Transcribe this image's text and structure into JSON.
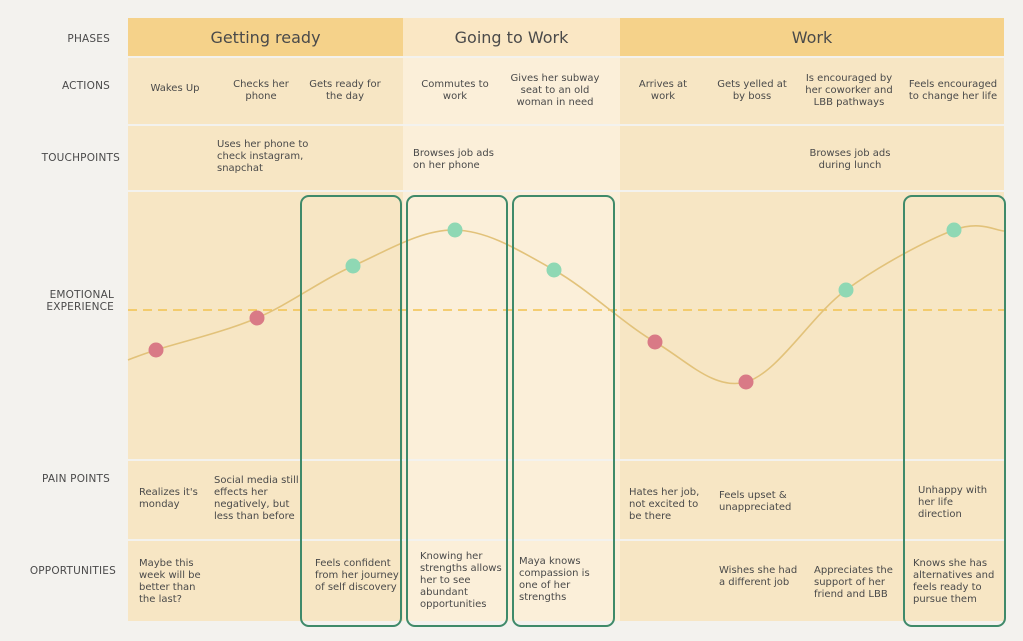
{
  "row_labels": {
    "phases": "PHASES",
    "actions": "ACTIONS",
    "touchpoints": "TOUCHPOINTS",
    "emotional_1": "EMOTIONAL",
    "emotional_2": "EXPERIENCE",
    "pain_points": "PAIN POINTS",
    "opportunities": "OPPORTUNITIES"
  },
  "phases": [
    "Getting ready",
    "Going to Work",
    "Work"
  ],
  "actions": [
    "Wakes Up",
    "Checks her phone",
    "Gets ready for the day",
    "Commutes to work",
    "Gives her subway seat to an old woman in need",
    "Arrives at work",
    "Gets yelled at by boss",
    "Is encouraged by her coworker and LBB pathways",
    "Feels encouraged to change her life"
  ],
  "touchpoints": [
    "Uses her phone to check instagram, snapchat",
    "Browses job ads on her phone",
    "Browses job ads during lunch"
  ],
  "pain_points": [
    "Realizes it's monday",
    "Social media still effects her negatively, but less than before",
    "Hates her job, not excited to be there",
    "Feels upset & unappreciated",
    "Unhappy with her life direction"
  ],
  "opportunities": [
    "Maybe this week will be better than the last?",
    "Feels confident from her journey of self discovery",
    "Knowing her strengths allows her to see abundant opportunities",
    "Maya knows compassion is one of her strengths",
    "Wishes she had a different job",
    "Appreciates the support of her friend and LBB",
    "Knows she has alternatives and feels ready to pursue them"
  ],
  "emotion_points": [
    {
      "step": 1,
      "level": -0.5,
      "tone": "negative"
    },
    {
      "step": 2,
      "level": -0.1,
      "tone": "negative"
    },
    {
      "step": 3,
      "level": 0.55,
      "tone": "positive"
    },
    {
      "step": 4,
      "level": 1.0,
      "tone": "positive"
    },
    {
      "step": 5,
      "level": 0.5,
      "tone": "positive"
    },
    {
      "step": 6,
      "level": -0.4,
      "tone": "negative"
    },
    {
      "step": 7,
      "level": -0.9,
      "tone": "negative"
    },
    {
      "step": 8,
      "level": 0.25,
      "tone": "positive"
    },
    {
      "step": 9,
      "level": 1.0,
      "tone": "positive"
    }
  ],
  "colors": {
    "phase_header": "#f5d28a",
    "phase_header_mid": "#fae7c4",
    "band": "#f7e6c4",
    "band_mid": "#fbefd9",
    "curve": "#e2c27a",
    "neutral_line": "#f2c24f",
    "negative": "#d97a86",
    "positive": "#8fd8b4",
    "highlight": "#3f8a6a"
  }
}
